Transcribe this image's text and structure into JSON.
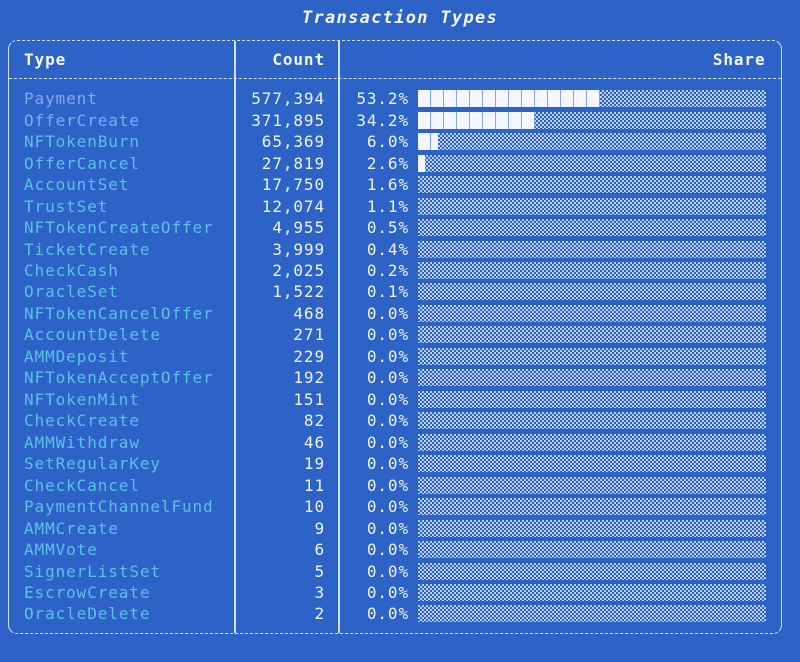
{
  "title": "Transaction Types",
  "colors": {
    "background": "#2d63c7",
    "border": "#eef4ff",
    "header_text": "#f5f8ff",
    "value_text": "#eef3fd",
    "bar_fill": "#f4f7ff",
    "type_default": "#5cc0e8",
    "type_top1": "#84a9f2",
    "type_top2": "#74b2ee"
  },
  "table": {
    "headers": {
      "type": "Type",
      "count": "Count",
      "share": "Share"
    },
    "rows": [
      {
        "type": "Payment",
        "count": "577,394",
        "share": "53.2%",
        "pct": 53.2,
        "color": "#84a9f2"
      },
      {
        "type": "OfferCreate",
        "count": "371,895",
        "share": "34.2%",
        "pct": 34.2,
        "color": "#74b2ee"
      },
      {
        "type": "NFTokenBurn",
        "count": "65,369",
        "share": "6.0%",
        "pct": 6.0
      },
      {
        "type": "OfferCancel",
        "count": "27,819",
        "share": "2.6%",
        "pct": 2.6
      },
      {
        "type": "AccountSet",
        "count": "17,750",
        "share": "1.6%",
        "pct": 1.6
      },
      {
        "type": "TrustSet",
        "count": "12,074",
        "share": "1.1%",
        "pct": 1.1
      },
      {
        "type": "NFTokenCreateOffer",
        "count": "4,955",
        "share": "0.5%",
        "pct": 0.5
      },
      {
        "type": "TicketCreate",
        "count": "3,999",
        "share": "0.4%",
        "pct": 0.4
      },
      {
        "type": "CheckCash",
        "count": "2,025",
        "share": "0.2%",
        "pct": 0.2
      },
      {
        "type": "OracleSet",
        "count": "1,522",
        "share": "0.1%",
        "pct": 0.1
      },
      {
        "type": "NFTokenCancelOffer",
        "count": "468",
        "share": "0.0%",
        "pct": 0.0
      },
      {
        "type": "AccountDelete",
        "count": "271",
        "share": "0.0%",
        "pct": 0.0
      },
      {
        "type": "AMMDeposit",
        "count": "229",
        "share": "0.0%",
        "pct": 0.0
      },
      {
        "type": "NFTokenAcceptOffer",
        "count": "192",
        "share": "0.0%",
        "pct": 0.0
      },
      {
        "type": "NFTokenMint",
        "count": "151",
        "share": "0.0%",
        "pct": 0.0
      },
      {
        "type": "CheckCreate",
        "count": "82",
        "share": "0.0%",
        "pct": 0.0
      },
      {
        "type": "AMMWithdraw",
        "count": "46",
        "share": "0.0%",
        "pct": 0.0
      },
      {
        "type": "SetRegularKey",
        "count": "19",
        "share": "0.0%",
        "pct": 0.0
      },
      {
        "type": "CheckCancel",
        "count": "11",
        "share": "0.0%",
        "pct": 0.0
      },
      {
        "type": "PaymentChannelFund",
        "count": "10",
        "share": "0.0%",
        "pct": 0.0
      },
      {
        "type": "AMMCreate",
        "count": "9",
        "share": "0.0%",
        "pct": 0.0
      },
      {
        "type": "AMMVote",
        "count": "6",
        "share": "0.0%",
        "pct": 0.0
      },
      {
        "type": "SignerListSet",
        "count": "5",
        "share": "0.0%",
        "pct": 0.0
      },
      {
        "type": "EscrowCreate",
        "count": "3",
        "share": "0.0%",
        "pct": 0.0
      },
      {
        "type": "OracleDelete",
        "count": "2",
        "share": "0.0%",
        "pct": 0.0
      }
    ]
  },
  "chart_data": {
    "type": "bar",
    "orientation": "horizontal",
    "title": "Transaction Types",
    "columns": [
      "Type",
      "Count",
      "Share"
    ],
    "categories": [
      "Payment",
      "OfferCreate",
      "NFTokenBurn",
      "OfferCancel",
      "AccountSet",
      "TrustSet",
      "NFTokenCreateOffer",
      "TicketCreate",
      "CheckCash",
      "OracleSet",
      "NFTokenCancelOffer",
      "AccountDelete",
      "AMMDeposit",
      "NFTokenAcceptOffer",
      "NFTokenMint",
      "CheckCreate",
      "AMMWithdraw",
      "SetRegularKey",
      "CheckCancel",
      "PaymentChannelFund",
      "AMMCreate",
      "AMMVote",
      "SignerListSet",
      "EscrowCreate",
      "OracleDelete"
    ],
    "counts": [
      577394,
      371895,
      65369,
      27819,
      17750,
      12074,
      4955,
      3999,
      2025,
      1522,
      468,
      271,
      229,
      192,
      151,
      82,
      46,
      19,
      11,
      10,
      9,
      6,
      5,
      3,
      2
    ],
    "share_pct": [
      53.2,
      34.2,
      6.0,
      2.6,
      1.6,
      1.1,
      0.5,
      0.4,
      0.2,
      0.1,
      0.0,
      0.0,
      0.0,
      0.0,
      0.0,
      0.0,
      0.0,
      0.0,
      0.0,
      0.0,
      0.0,
      0.0,
      0.0,
      0.0,
      0.0
    ],
    "xlim": [
      0,
      100
    ],
    "bar_total_chars": 27,
    "bar_style": "terminal-blocks (filled = full block, empty = light-shade dither)",
    "legend": false,
    "grid": false
  }
}
